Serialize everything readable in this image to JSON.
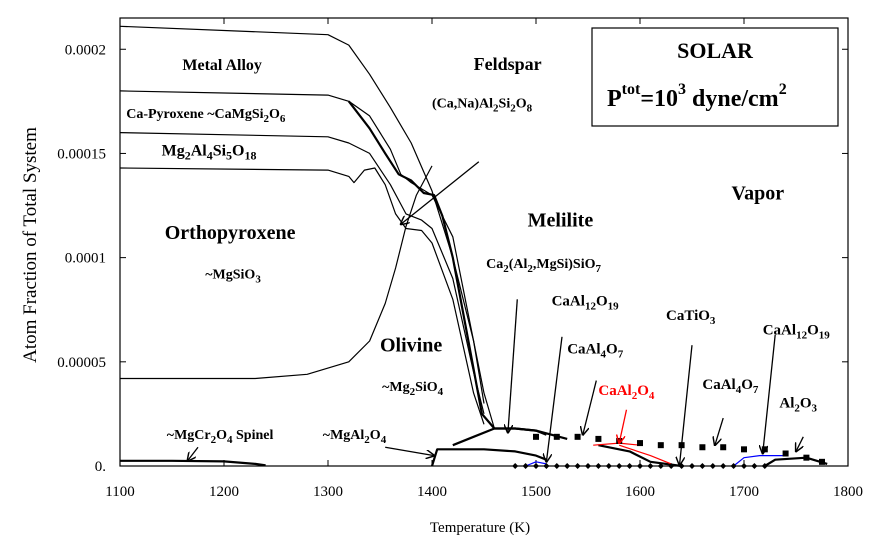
{
  "chart_data": {
    "type": "area",
    "title_box": {
      "line1": "SOLAR",
      "line2_prefix": "P",
      "line2_sup1": "tot",
      "line2_mid": "=10",
      "line2_sup2": "3",
      "line2_unit": " dyne/cm",
      "line2_sup3": "2"
    },
    "xlabel": "Temperature (K)",
    "ylabel": "Atom Fraction of Total System",
    "xlim": [
      1100,
      1800
    ],
    "ylim": [
      0,
      0.000215
    ],
    "xticks": [
      1100,
      1200,
      1300,
      1400,
      1500,
      1600,
      1700,
      1800
    ],
    "xtick_labels": [
      "1100",
      "1200",
      "1300",
      "1400",
      "1500",
      "1600",
      "1700",
      "1800"
    ],
    "yticks": [
      0,
      5e-05,
      0.0001,
      0.00015,
      0.0002
    ],
    "ytick_labels": [
      "0.",
      "0.00005",
      "0.0001",
      "0.00015",
      "0.0002"
    ],
    "grid": false,
    "curves": [
      {
        "name": "c1",
        "width": 1.2,
        "color": "#000000",
        "points": [
          [
            1100,
            0.000211
          ],
          [
            1300,
            0.000207
          ],
          [
            1320,
            0.000202
          ],
          [
            1340,
            0.000188
          ],
          [
            1360,
            0.000172
          ],
          [
            1380,
            0.000155
          ],
          [
            1400,
            0.000132
          ],
          [
            1420,
            0.0001
          ],
          [
            1440,
            6e-05
          ],
          [
            1450,
            3.5e-05
          ],
          [
            1460,
            1.8e-05
          ]
        ]
      },
      {
        "name": "c2",
        "width": 1.2,
        "color": "#000000",
        "points": [
          [
            1100,
            0.00018
          ],
          [
            1300,
            0.000178
          ],
          [
            1320,
            0.000175
          ],
          [
            1340,
            0.000168
          ],
          [
            1360,
            0.000152
          ],
          [
            1370,
            0.00014
          ],
          [
            1380,
            0.000136
          ],
          [
            1400,
            0.00013
          ],
          [
            1420,
            0.00011
          ],
          [
            1440,
            6e-05
          ],
          [
            1450,
            3e-05
          ]
        ]
      },
      {
        "name": "c3",
        "width": 1.2,
        "color": "#000000",
        "points": [
          [
            1100,
            0.00016
          ],
          [
            1300,
            0.000158
          ],
          [
            1320,
            0.000155
          ],
          [
            1340,
            0.00015
          ],
          [
            1360,
            0.000135
          ],
          [
            1375,
            0.000121
          ],
          [
            1390,
            0.000118
          ],
          [
            1400,
            0.000114
          ],
          [
            1420,
            9e-05
          ],
          [
            1440,
            4.5e-05
          ],
          [
            1450,
            2.5e-05
          ]
        ]
      },
      {
        "name": "c4",
        "width": 1.2,
        "color": "#000000",
        "points": [
          [
            1100,
            0.000143
          ],
          [
            1300,
            0.000142
          ],
          [
            1320,
            0.000139
          ],
          [
            1325,
            0.000136
          ],
          [
            1335,
            0.000142
          ],
          [
            1345,
            0.000143
          ],
          [
            1355,
            0.000135
          ],
          [
            1365,
            0.000121
          ],
          [
            1375,
            0.000114
          ],
          [
            1390,
            0.000113
          ],
          [
            1400,
            0.000107
          ],
          [
            1420,
            8e-05
          ],
          [
            1440,
            3.5e-05
          ],
          [
            1450,
            2e-05
          ]
        ]
      },
      {
        "name": "olivine",
        "width": 1.2,
        "color": "#000000",
        "points": [
          [
            1100,
            4.2e-05
          ],
          [
            1230,
            4.2e-05
          ],
          [
            1280,
            4.4e-05
          ],
          [
            1320,
            5e-05
          ],
          [
            1340,
            6e-05
          ],
          [
            1355,
            7.8e-05
          ],
          [
            1365,
            9.5e-05
          ],
          [
            1375,
            0.000115
          ],
          [
            1385,
            0.00013
          ],
          [
            1400,
            0.000144
          ]
        ]
      },
      {
        "name": "upper-band",
        "width": 2.2,
        "color": "#000000",
        "points": [
          [
            1320,
            0.000175
          ],
          [
            1340,
            0.000162
          ],
          [
            1355,
            0.00015
          ],
          [
            1368,
            0.00014
          ],
          [
            1380,
            0.000137
          ],
          [
            1392,
            0.000131
          ],
          [
            1402,
            0.00013
          ],
          [
            1410,
            0.00012
          ],
          [
            1420,
            0.0001
          ],
          [
            1435,
            6e-05
          ],
          [
            1448,
            2.5e-05
          ],
          [
            1460,
            1.8e-05
          ],
          [
            1480,
            1.8e-05
          ],
          [
            1500,
            1.7e-05
          ],
          [
            1510,
            1.5e-05
          ]
        ]
      },
      {
        "name": "melilite-top",
        "width": 2.2,
        "color": "#000000",
        "points": [
          [
            1420,
            1e-05
          ],
          [
            1440,
            1.4e-05
          ],
          [
            1460,
            1.8e-05
          ],
          [
            1480,
            1.8e-05
          ],
          [
            1500,
            1.7e-05
          ],
          [
            1530,
            1.3e-05
          ]
        ]
      },
      {
        "name": "spinel",
        "width": 2.2,
        "color": "#000000",
        "points": [
          [
            1100,
            2.5e-06
          ],
          [
            1150,
            2.5e-06
          ],
          [
            1200,
            2.2e-06
          ],
          [
            1230,
            1e-06
          ],
          [
            1240,
            3e-07
          ]
        ]
      },
      {
        "name": "spinel-2",
        "width": 2.2,
        "color": "#000000",
        "points": [
          [
            1400,
            0.0
          ],
          [
            1405,
            8e-06
          ],
          [
            1420,
            8e-06
          ],
          [
            1450,
            8e-06
          ],
          [
            1480,
            7e-06
          ],
          [
            1500,
            5e-06
          ],
          [
            1510,
            3e-06
          ]
        ]
      },
      {
        "name": "cat-lower",
        "width": 2.2,
        "color": "#000000",
        "points": [
          [
            1560,
            1e-05
          ],
          [
            1590,
            7e-06
          ],
          [
            1610,
            2e-06
          ],
          [
            1640,
            0.0
          ]
        ]
      },
      {
        "name": "low-right",
        "width": 2.2,
        "color": "#000000",
        "points": [
          [
            1720,
            0.0
          ],
          [
            1730,
            3e-06
          ],
          [
            1760,
            4e-06
          ],
          [
            1780,
            1e-06
          ]
        ]
      },
      {
        "name": "red1",
        "width": 1.2,
        "color": "#ff0000",
        "points": [
          [
            1555,
            1e-05
          ],
          [
            1580,
            1.1e-05
          ],
          [
            1600,
            1e-05
          ]
        ]
      },
      {
        "name": "red2",
        "width": 1.2,
        "color": "#ff0000",
        "points": [
          [
            1580,
            1e-05
          ],
          [
            1610,
            5e-06
          ],
          [
            1630,
            1e-06
          ]
        ]
      },
      {
        "name": "blue1",
        "width": 1.2,
        "color": "#0000ff",
        "points": [
          [
            1490,
            0.0
          ],
          [
            1500,
            2e-06
          ],
          [
            1510,
            1e-06
          ]
        ]
      },
      {
        "name": "blue2",
        "width": 1.2,
        "color": "#0000ff",
        "points": [
          [
            1690,
            0.0
          ],
          [
            1700,
            4e-06
          ],
          [
            1715,
            5e-06
          ],
          [
            1740,
            5e-06
          ]
        ]
      }
    ],
    "square_markers": {
      "color": "#000000",
      "points": [
        [
          1500,
          1.4e-05
        ],
        [
          1520,
          1.4e-05
        ],
        [
          1540,
          1.4e-05
        ],
        [
          1560,
          1.3e-05
        ],
        [
          1580,
          1.2e-05
        ],
        [
          1600,
          1.1e-05
        ],
        [
          1620,
          1e-05
        ],
        [
          1640,
          1e-05
        ],
        [
          1660,
          9e-06
        ],
        [
          1680,
          9e-06
        ],
        [
          1700,
          8e-06
        ],
        [
          1720,
          8e-06
        ],
        [
          1740,
          6e-06
        ],
        [
          1760,
          4e-06
        ],
        [
          1775,
          2e-06
        ]
      ]
    },
    "diamond_markers": {
      "color": "#000000",
      "points": [
        [
          1480,
          0.0
        ],
        [
          1490,
          0.0
        ],
        [
          1500,
          0.0
        ],
        [
          1510,
          0.0
        ],
        [
          1520,
          0.0
        ],
        [
          1530,
          0.0
        ],
        [
          1540,
          0.0
        ],
        [
          1550,
          0.0
        ],
        [
          1560,
          0.0
        ],
        [
          1570,
          0.0
        ],
        [
          1580,
          0.0
        ],
        [
          1590,
          0.0
        ],
        [
          1600,
          0.0
        ],
        [
          1610,
          0.0
        ],
        [
          1620,
          0.0
        ],
        [
          1630,
          0.0
        ],
        [
          1640,
          0.0
        ],
        [
          1650,
          0.0
        ],
        [
          1660,
          0.0
        ],
        [
          1670,
          0.0
        ],
        [
          1680,
          0.0
        ],
        [
          1690,
          0.0
        ],
        [
          1700,
          0.0
        ],
        [
          1710,
          0.0
        ],
        [
          1720,
          0.0
        ]
      ]
    },
    "labels": [
      {
        "text": "Metal Alloy",
        "x": 1160,
        "y": 0.00019,
        "size": 16,
        "bold": true
      },
      {
        "text": "Feldspar",
        "x": 1440,
        "y": 0.00019,
        "size": 18,
        "bold": true
      },
      {
        "text": "(Ca,Na)Al",
        "x": 1400,
        "y": 0.000172,
        "size": 14,
        "bold": true,
        "subs": [
          "2",
          "Si",
          "2",
          "O",
          "8"
        ]
      },
      {
        "text": "Ca-Pyroxene ~CaMgSi",
        "x": 1106,
        "y": 0.000167,
        "size": 14,
        "bold": true,
        "subs": [
          "2",
          "O",
          "6"
        ]
      },
      {
        "text": "Mg",
        "x": 1140,
        "y": 0.000149,
        "size": 16,
        "bold": true,
        "subs": [
          "2",
          "Al",
          "4",
          "Si",
          "5",
          "O",
          "18"
        ]
      },
      {
        "text": "Orthopyroxene",
        "x": 1143,
        "y": 0.000109,
        "size": 20,
        "bold": true
      },
      {
        "text": "~MgSiO",
        "x": 1182,
        "y": 9e-05,
        "size": 14,
        "bold": true,
        "subs": [
          "3"
        ]
      },
      {
        "text": "Olivine",
        "x": 1350,
        "y": 5.5e-05,
        "size": 20,
        "bold": true
      },
      {
        "text": "~Mg",
        "x": 1352,
        "y": 3.6e-05,
        "size": 14,
        "bold": true,
        "subs": [
          "2",
          "SiO",
          "4"
        ]
      },
      {
        "text": "Vapor",
        "x": 1688,
        "y": 0.000128,
        "size": 20,
        "bold": true
      },
      {
        "text": "Melilite",
        "x": 1492,
        "y": 0.000115,
        "size": 20,
        "bold": true
      },
      {
        "text": "Ca",
        "x": 1452,
        "y": 9.5e-05,
        "size": 14,
        "bold": true,
        "subs": [
          "2",
          "(Al",
          "2",
          ",MgSi)SiO",
          "7"
        ]
      },
      {
        "text": "CaAl",
        "x": 1515,
        "y": 7.7e-05,
        "size": 15,
        "bold": true,
        "subs": [
          "12",
          "O",
          "19"
        ]
      },
      {
        "text": "CaTiO",
        "x": 1625,
        "y": 7e-05,
        "size": 15,
        "bold": true,
        "subs": [
          "3"
        ]
      },
      {
        "text": "CaAl",
        "x": 1718,
        "y": 6.3e-05,
        "size": 15,
        "bold": true,
        "subs": [
          "12",
          "O",
          "19"
        ]
      },
      {
        "text": "CaAl",
        "x": 1530,
        "y": 5.4e-05,
        "size": 15,
        "bold": true,
        "subs": [
          "4",
          "O",
          "7"
        ]
      },
      {
        "text": "CaAl",
        "x": 1560,
        "y": 3.4e-05,
        "size": 15,
        "bold": true,
        "subs": [
          "2",
          "O",
          "4"
        ],
        "color": "#ff0000"
      },
      {
        "text": "CaAl",
        "x": 1660,
        "y": 3.7e-05,
        "size": 15,
        "bold": true,
        "subs": [
          "4",
          "O",
          "7"
        ]
      },
      {
        "text": "Al",
        "x": 1734,
        "y": 2.8e-05,
        "size": 15,
        "bold": true,
        "subs": [
          "2",
          "O",
          "3"
        ]
      },
      {
        "text": "~MgCr",
        "x": 1145,
        "y": 1.3e-05,
        "size": 14,
        "bold": true,
        "subs": [
          "2",
          "O",
          "4",
          "   Spinel"
        ]
      },
      {
        "text": "~MgAl",
        "x": 1295,
        "y": 1.3e-05,
        "size": 14,
        "bold": true,
        "subs": [
          "2",
          "O",
          "4"
        ]
      }
    ],
    "arrows": [
      {
        "from": [
          1445,
          0.000146
        ],
        "to": [
          1370,
          0.000116
        ],
        "color": "#000000"
      },
      {
        "from": [
          1525,
          6.2e-05
        ],
        "to": [
          1510,
          2e-06
        ],
        "color": "#000000"
      },
      {
        "from": [
          1482,
          8e-05
        ],
        "to": [
          1473,
          1.6e-05
        ],
        "color": "#000000"
      },
      {
        "from": [
          1558,
          4.1e-05
        ],
        "to": [
          1545,
          1.5e-05
        ],
        "color": "#000000"
      },
      {
        "from": [
          1650,
          5.8e-05
        ],
        "to": [
          1638,
          5e-07
        ],
        "color": "#000000"
      },
      {
        "from": [
          1587,
          2.7e-05
        ],
        "to": [
          1580,
          1.1e-05
        ],
        "color": "#ff0000"
      },
      {
        "from": [
          1680,
          2.3e-05
        ],
        "to": [
          1672,
          1e-05
        ],
        "color": "#000000"
      },
      {
        "from": [
          1730,
          6.3e-05
        ],
        "to": [
          1718,
          6e-06
        ],
        "color": "#000000"
      },
      {
        "from": [
          1757,
          1.4e-05
        ],
        "to": [
          1750,
          7e-06
        ],
        "color": "#000000"
      },
      {
        "from": [
          1175,
          9e-06
        ],
        "to": [
          1165,
          2.5e-06
        ],
        "color": "#000000"
      },
      {
        "from": [
          1355,
          9e-06
        ],
        "to": [
          1402,
          5e-06
        ],
        "color": "#000000"
      }
    ]
  }
}
